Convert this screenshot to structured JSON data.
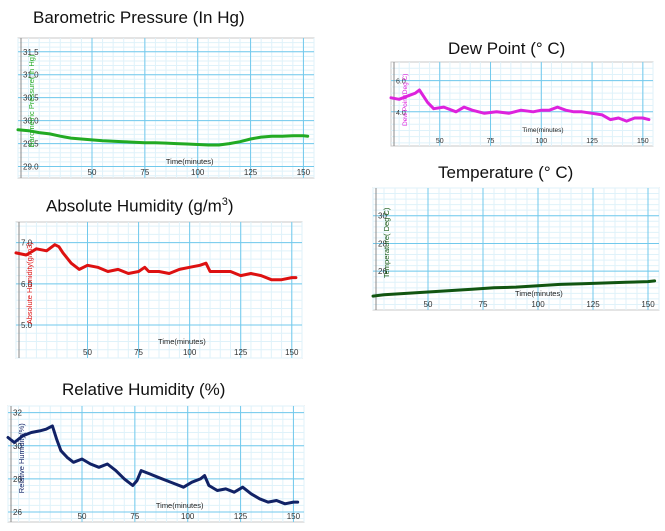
{
  "chart_data": [
    {
      "id": "baro",
      "type": "line",
      "title": "Barometric Pressure (In Hg)",
      "xlabel": "Time(minutes)",
      "ylabel": "Barometric Pressure( in Hg)",
      "color": "#22aa22",
      "ylabel_color": "#22aa22",
      "xlim": [
        15,
        155
      ],
      "ylim": [
        28.75,
        31.8
      ],
      "xticks": [
        50,
        75,
        100,
        125,
        150
      ],
      "yticks": [
        29.0,
        29.5,
        30.0,
        30.5,
        31.0,
        31.5
      ],
      "ytick_labels": [
        "29.0",
        "29.5",
        "30.0",
        "30.5",
        "31.0",
        "31.5"
      ],
      "grid": true,
      "series": [
        {
          "x": [
            15,
            20,
            25,
            30,
            35,
            40,
            45,
            50,
            55,
            60,
            65,
            70,
            75,
            80,
            85,
            90,
            95,
            100,
            105,
            110,
            115,
            120,
            125,
            130,
            135,
            140,
            145,
            150,
            152
          ],
          "y": [
            29.8,
            29.78,
            29.74,
            29.71,
            29.66,
            29.62,
            29.6,
            29.58,
            29.56,
            29.55,
            29.54,
            29.53,
            29.52,
            29.52,
            29.51,
            29.5,
            29.49,
            29.48,
            29.47,
            29.47,
            29.5,
            29.54,
            29.6,
            29.64,
            29.66,
            29.66,
            29.67,
            29.67,
            29.66
          ]
        }
      ]
    },
    {
      "id": "dew",
      "type": "line",
      "title": "Dew Point (° C)",
      "xlabel": "Time(minutes)",
      "ylabel": "Dew Point(Deg C)",
      "color": "#dd22dd",
      "ylabel_color": "#dd22dd",
      "xlim": [
        26,
        155
      ],
      "ylim": [
        1.8,
        7.2
      ],
      "xticks": [
        50,
        75,
        100,
        125,
        150
      ],
      "yticks": [
        4.0,
        6.0
      ],
      "ytick_labels": [
        "4.0",
        "6.0"
      ],
      "grid": true,
      "series": [
        {
          "x": [
            26,
            30,
            34,
            38,
            40,
            42,
            44,
            47,
            52,
            58,
            62,
            66,
            72,
            78,
            84,
            90,
            96,
            100,
            104,
            108,
            112,
            116,
            120,
            125,
            130,
            134,
            138,
            142,
            146,
            150,
            153
          ],
          "y": [
            4.9,
            4.8,
            5.0,
            5.2,
            5.4,
            5.0,
            4.6,
            4.2,
            4.3,
            4.0,
            4.3,
            4.1,
            3.9,
            4.0,
            3.9,
            4.1,
            4.0,
            4.1,
            4.1,
            4.3,
            4.1,
            4.0,
            4.0,
            3.9,
            3.8,
            3.5,
            3.6,
            3.4,
            3.6,
            3.6,
            3.5
          ]
        }
      ]
    },
    {
      "id": "abs",
      "type": "line",
      "title": "Absolute Humidity (g/m",
      "title_sup": "3",
      "title_suffix": ")",
      "xlabel": "Time(minutes)",
      "ylabel": "Absolute Humidity(g/m3)",
      "color": "#dd1111",
      "ylabel_color": "#dd1111",
      "xlim": [
        15,
        155
      ],
      "ylim": [
        4.2,
        7.5
      ],
      "xticks": [
        50,
        75,
        100,
        125,
        150
      ],
      "yticks": [
        5.0,
        6.0,
        7.0
      ],
      "ytick_labels": [
        "5.0",
        "6.0",
        "7.0"
      ],
      "grid": true,
      "series": [
        {
          "x": [
            15,
            20,
            25,
            30,
            34,
            36,
            38,
            42,
            46,
            50,
            55,
            60,
            65,
            70,
            75,
            78,
            80,
            85,
            90,
            95,
            100,
            105,
            108,
            110,
            115,
            120,
            125,
            130,
            135,
            140,
            145,
            150,
            152
          ],
          "y": [
            6.75,
            6.7,
            6.85,
            6.8,
            6.95,
            6.9,
            6.75,
            6.5,
            6.35,
            6.45,
            6.4,
            6.3,
            6.35,
            6.25,
            6.3,
            6.4,
            6.3,
            6.3,
            6.25,
            6.35,
            6.4,
            6.45,
            6.5,
            6.3,
            6.3,
            6.3,
            6.2,
            6.25,
            6.2,
            6.1,
            6.1,
            6.15,
            6.15
          ]
        }
      ]
    },
    {
      "id": "temp",
      "type": "line",
      "title": "Temperature (° C)",
      "xlabel": "Time(minutes)",
      "ylabel": "Temperature( Deg C)",
      "color": "#115511",
      "ylabel_color": "#115511",
      "xlim": [
        25,
        155
      ],
      "ylim": [
        23.2,
        32
      ],
      "xticks": [
        50,
        75,
        100,
        125,
        150
      ],
      "yticks": [
        26,
        28,
        30
      ],
      "ytick_labels": [
        "26",
        "28",
        "30"
      ],
      "grid": true,
      "series": [
        {
          "x": [
            25,
            30,
            40,
            50,
            60,
            70,
            80,
            90,
            100,
            110,
            120,
            130,
            140,
            150,
            153
          ],
          "y": [
            24.2,
            24.3,
            24.4,
            24.5,
            24.6,
            24.7,
            24.8,
            24.85,
            24.95,
            25.05,
            25.1,
            25.15,
            25.2,
            25.25,
            25.3
          ]
        }
      ]
    },
    {
      "id": "rel",
      "type": "line",
      "title": "Relative Humidity (%)",
      "xlabel": "Time(minutes)",
      "ylabel": "Relative Humidity(%)",
      "color": "#112266",
      "ylabel_color": "#112266",
      "xlim": [
        15,
        155
      ],
      "ylim": [
        25.4,
        32.4
      ],
      "xticks": [
        50,
        75,
        100,
        125,
        150
      ],
      "yticks": [
        26,
        28,
        30,
        32
      ],
      "ytick_labels": [
        "26",
        "28",
        "30",
        "32"
      ],
      "grid": true,
      "series": [
        {
          "x": [
            15,
            18,
            22,
            26,
            30,
            33,
            36,
            38,
            40,
            43,
            46,
            50,
            54,
            58,
            62,
            66,
            70,
            74,
            76,
            78,
            82,
            86,
            90,
            94,
            98,
            102,
            106,
            108,
            110,
            114,
            118,
            122,
            126,
            130,
            134,
            138,
            142,
            146,
            150,
            152
          ],
          "y": [
            30.5,
            30.2,
            30.6,
            30.8,
            30.9,
            31.0,
            31.2,
            30.4,
            29.7,
            29.3,
            29.0,
            29.2,
            28.9,
            28.7,
            28.9,
            28.5,
            28.0,
            27.6,
            27.9,
            28.5,
            28.3,
            28.1,
            27.9,
            27.7,
            27.5,
            27.8,
            28.0,
            28.2,
            27.6,
            27.3,
            27.4,
            27.2,
            27.5,
            27.1,
            26.8,
            26.6,
            26.7,
            26.5,
            26.6,
            26.6
          ]
        }
      ]
    }
  ]
}
